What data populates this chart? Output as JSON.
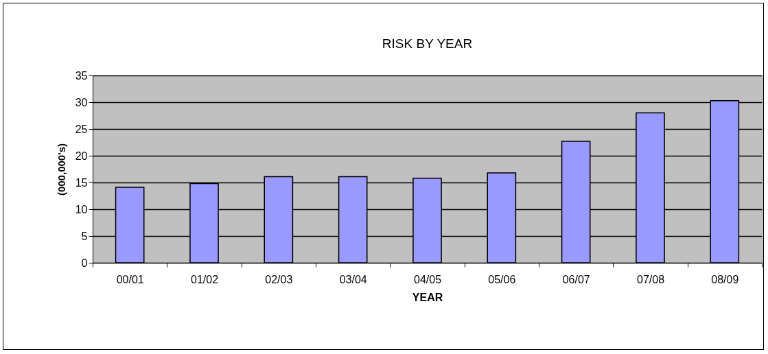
{
  "chart_data": {
    "type": "bar",
    "title": "RISK BY YEAR",
    "xlabel": "YEAR",
    "ylabel": "(000,000's)",
    "categories": [
      "00/01",
      "01/02",
      "02/03",
      "03/04",
      "04/05",
      "05/06",
      "06/07",
      "07/08",
      "08/09"
    ],
    "values": [
      14.1,
      14.8,
      16.1,
      16.1,
      15.8,
      16.8,
      22.7,
      28.0,
      30.3
    ],
    "color": "#9999ff",
    "ylim": [
      0,
      35
    ],
    "yticks": [
      0,
      5,
      10,
      15,
      20,
      25,
      30,
      35
    ],
    "grid": "y"
  }
}
